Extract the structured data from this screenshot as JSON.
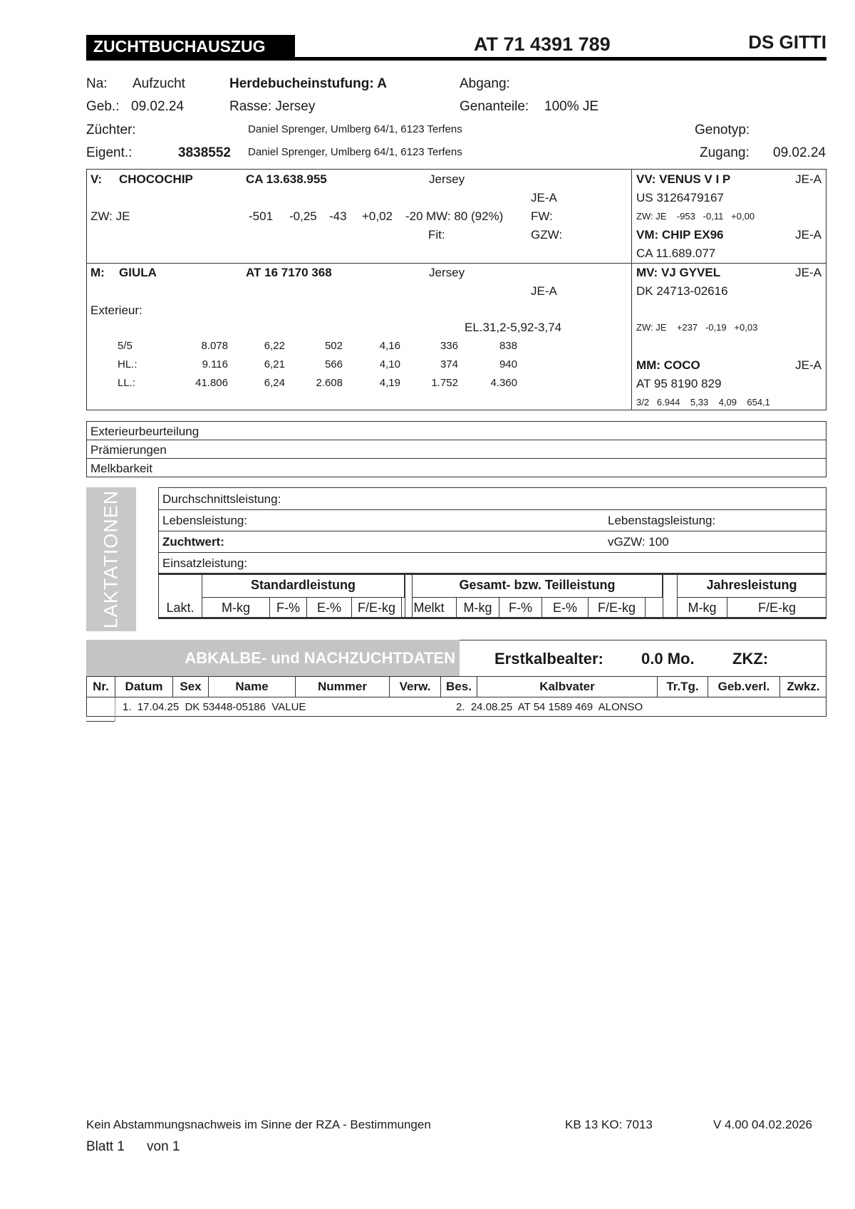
{
  "header": {
    "title": "ZUCHTBUCHAUSZUG",
    "ear_tag": "AT 71 4391 789",
    "animal_name": "DS GITTI"
  },
  "info": {
    "na_label": "Na:",
    "na_value": "Aufzucht",
    "herdbook": "Herdebucheinstufung: A",
    "abgang": "Abgang:",
    "geb_label": "Geb.:",
    "geb_value": "09.02.24",
    "rasse": "Rasse: Jersey",
    "genanteile_label": "Genanteile:",
    "genanteile_value": "100% JE",
    "zuechter_label": "Züchter:",
    "zuechter_value": "Daniel Sprenger, Umlberg 64/1, 6123  Terfens",
    "genotyp": "Genotyp:",
    "eigent_label": "Eigent.:",
    "eigent_number": "3838552",
    "eigent_value": "Daniel Sprenger, Umlberg 64/1, 6123 Terfens",
    "zugang_label": "Zugang:",
    "zugang_value": "09.02.24"
  },
  "sire": {
    "label": "V:",
    "name": "CHOCOCHIP",
    "number": "CA 13.638.955",
    "breed": "Jersey",
    "grade": "JE-A",
    "zw_label": "ZW: JE",
    "zw_values": [
      "-501",
      "-0,25",
      "-43",
      "+0,02",
      "-20"
    ],
    "mw": "MW: 80 (92%)",
    "fw": "FW:",
    "fit": "Fit:",
    "gzw": "GZW:"
  },
  "dam": {
    "label": "M:",
    "name": "GIULA",
    "number": "AT 16 7170 368",
    "breed": "Jersey",
    "grade": "JE-A",
    "exterieur": "Exterieur:",
    "el": "EL.31,2-5,92-3,74",
    "rows": [
      {
        "label": "5/5",
        "values": [
          "8.078",
          "6,22",
          "502",
          "4,16",
          "336",
          "838"
        ]
      },
      {
        "label": "HL.:",
        "values": [
          "9.116",
          "6,21",
          "566",
          "4,10",
          "374",
          "940"
        ]
      },
      {
        "label": "LL.:",
        "values": [
          "41.806",
          "6,24",
          "2.608",
          "4,19",
          "1.752",
          "4.360"
        ]
      }
    ]
  },
  "ancestors": {
    "vv": {
      "name": "VV: VENUS V I P",
      "grade": "JE-A",
      "number": "US 3126479167",
      "zw": "ZW: JE    -953   -0,11   +0,00"
    },
    "vm": {
      "name": "VM: CHIP EX96",
      "grade": "JE-A",
      "number": "CA 11.689.077"
    },
    "mv": {
      "name": "MV: VJ GYVEL",
      "grade": "JE-A",
      "number": "DK 24713-02616",
      "zw": "ZW: JE    +237   -0,19   +0,03"
    },
    "mm": {
      "name": "MM: COCO",
      "grade": "JE-A",
      "number": "AT 95 8190 829",
      "perf": "3/2   6.944    5,33    4,09    654,1"
    }
  },
  "sections": [
    "Exterieurbeurteilung",
    "Prämierungen",
    "Melkbarkeit"
  ],
  "laktationen": {
    "side_label": "LAKTATIONEN",
    "durchschnitt": "Durchschnittsleistung:",
    "lebensleistung": "Lebensleistung:",
    "lebenstag": "Lebenstagsleistung:",
    "zuchtwert": "Zuchtwert:",
    "vgzw": "vGZW: 100",
    "einsatz": "Einsatzleistung:",
    "groups": [
      "Standardleistung",
      "Gesamt- bzw. Teilleistung",
      "Jahresleistung"
    ],
    "columns": [
      "Lakt.",
      "M-kg",
      "F-%",
      "E-%",
      "F/E-kg",
      "Melkt",
      "M-kg",
      "F-%",
      "E-%",
      "F/E-kg",
      "",
      "M-kg",
      "F/E-kg"
    ]
  },
  "abkalbe": {
    "title": "ABKALBE- und NACHZUCHTDATEN",
    "erstkalb_label": "Erstkalbealter:",
    "erstkalb_value": "0.0 Mo.",
    "zkz": "ZKZ:",
    "columns": [
      "Nr.",
      "Datum",
      "Sex",
      "Name",
      "Nummer",
      "Verw.",
      "Bes.",
      "Kalbvater",
      "Tr.Tg.",
      "Geb.verl.",
      "Zwkz."
    ],
    "entries": [
      "1.  17.04.25  DK 53448-05186  VALUE",
      "2.  24.08.25  AT 54 1589 469  ALONSO"
    ]
  },
  "footer": {
    "disclaimer": "Kein Abstammungsnachweis im Sinne der RZA - Bestimmungen",
    "kb": "KB 13 KO: 7013",
    "version": "V 4.00 04.02.2026",
    "page": "Blatt 1",
    "of": "von 1"
  }
}
